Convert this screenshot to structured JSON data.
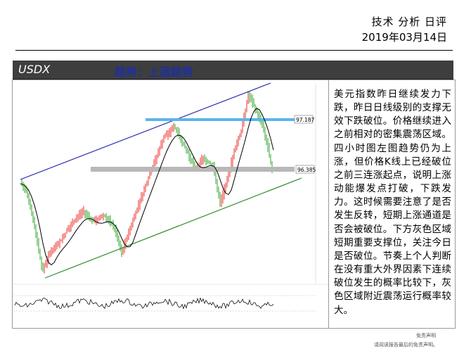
{
  "header": {
    "title": "技术 分析 日评",
    "date": "2019年03月14日"
  },
  "banner": {
    "symbol": "USDX",
    "trend": "趋势：上涨趋势"
  },
  "chart": {
    "resistance_label": "97.187",
    "support_label": "96.385",
    "colors": {
      "up_candle": "#e8322b",
      "down_candle": "#2fa62a",
      "upper_channel": "#2a2ab0",
      "lower_channel": "#2e8b2e",
      "resistance_band": "#5cb4ea",
      "support_band": "#b8b8b8",
      "moving_average": "#000000"
    }
  },
  "commentary": "美元指数昨日继续发力下跌，昨日日线级别的支撑无效下跌破位。价格继续进入之前相对的密集震荡区域。四小时图左图趋势仍为上涨，但价格K线上已经破位之前三连涨起点，说明上涨动能爆发点打破，下跌发力。这时候需要注意了是否发生反转，短期上涨通道是否会被破位。下方灰色区域短期重要支撑位，关注今日是否破位。节奏上个人判断在没有重大外界因素下连续破位发生的概率比较下，灰色区域附近震荡运行概率较大。",
  "footer": {
    "line1": "免责声明",
    "line2": "请阅读报告最后的免责声明。"
  }
}
